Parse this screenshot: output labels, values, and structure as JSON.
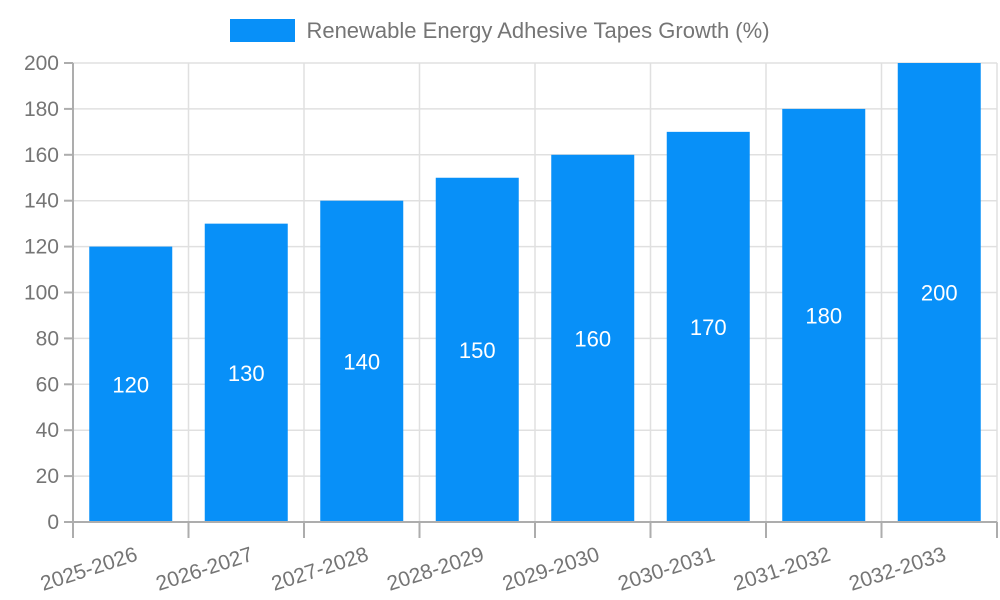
{
  "legend": {
    "label": "Renewable Energy Adhesive Tapes Growth (%)"
  },
  "chart_data": {
    "type": "bar",
    "title": "Renewable Energy Adhesive Tapes Growth (%)",
    "categories": [
      "2025-2026",
      "2026-2027",
      "2027-2028",
      "2028-2029",
      "2029-2030",
      "2030-2031",
      "2031-2032",
      "2032-2033"
    ],
    "values": [
      120,
      130,
      140,
      150,
      160,
      170,
      180,
      200
    ],
    "xlabel": "",
    "ylabel": "",
    "ylim": [
      0,
      200
    ],
    "ytick_step": 20,
    "ytick_labels": [
      "0",
      "20",
      "40",
      "60",
      "80",
      "100",
      "120",
      "140",
      "160",
      "180",
      "200"
    ],
    "grid": true,
    "legend_position": "top-center",
    "colors": {
      "bar": "#0890f8",
      "value_label": "#ffffff",
      "tick_label": "#757575",
      "grid": "#e0e0e0",
      "axis": "#adadad",
      "background": "#ffffff"
    }
  }
}
